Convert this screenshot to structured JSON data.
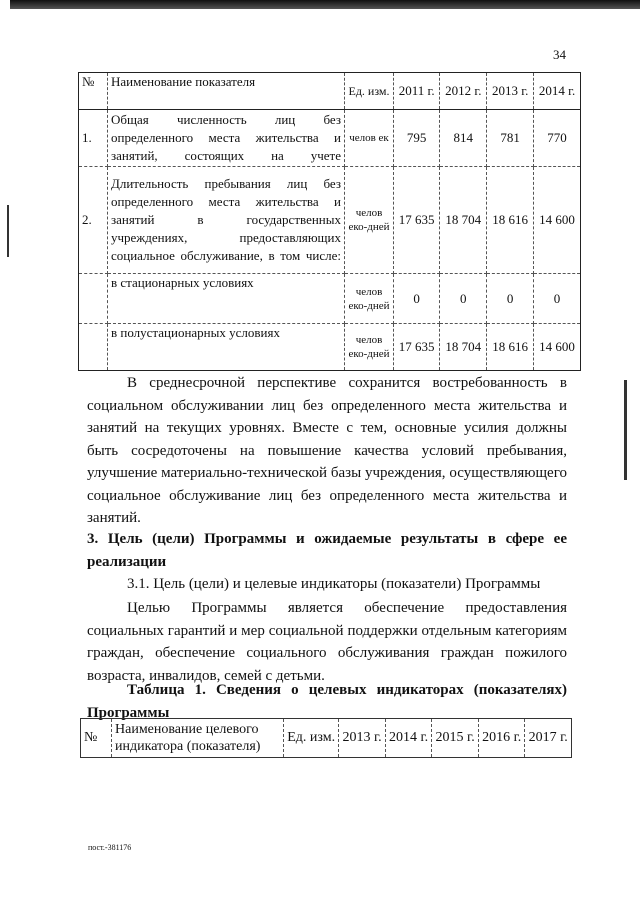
{
  "page_number": "34",
  "table1": {
    "headers": [
      "№",
      "Наименование показателя",
      "Ед. изм.",
      "2011 г.",
      "2012 г.",
      "2013 г.",
      "2014 г."
    ],
    "rows": [
      {
        "num": "1.",
        "name": "Общая численность лиц без определенного места жительства и занятий, состоящих на учете",
        "unit": "челов ек",
        "values": [
          "795",
          "814",
          "781",
          "770"
        ]
      },
      {
        "num": "2.",
        "name": "Длительность пребывания лиц без определенного места жительства и занятий в государственных учреждениях, предоставляющих социальное обслуживание, в том числе:",
        "unit": "челов еко-дней",
        "values": [
          "17 635",
          "18 704",
          "18 616",
          "14 600"
        ]
      },
      {
        "num": "",
        "name": "в стационарных условиях",
        "unit": "челов еко-дней",
        "values": [
          "0",
          "0",
          "0",
          "0"
        ]
      },
      {
        "num": "",
        "name": "в полустационарных условиях",
        "unit": "челов еко-дней",
        "values": [
          "17 635",
          "18 704",
          "18 616",
          "14 600"
        ]
      }
    ]
  },
  "paragraph1": "В среднесрочной перспективе сохранится востребованность в социальном обслуживании лиц без определенного места жительства и занятий на текущих уровнях. Вместе с тем, основные усилия должны быть сосредоточены на повышение качества условий пребывания, улучшение материально-технической базы учреждения, осуществляющего социальное обслуживание лиц без определенного места жительства и занятий.",
  "section_heading": "3. Цель (цели) Программы и ожидаемые результаты в сфере ее реализации",
  "subsection_heading": "3.1. Цель (цели) и целевые индикаторы (показатели) Программы",
  "paragraph2": "Целью Программы является обеспечение предоставления социальных гарантий и мер социальной поддержки отдельным категориям граждан, обеспечение социального обслуживания граждан пожилого возраста, инвалидов, семей с детьми.",
  "table2_caption": "Таблица 1. Сведения о целевых индикаторах (показателях) Программы",
  "table2": {
    "headers": [
      "№",
      "Наименование целевого индикатора (показателя)",
      "Ед. изм.",
      "2013 г.",
      "2014 г.",
      "2015 г.",
      "2016 г.",
      "2017 г."
    ]
  },
  "footer": "пост.-381176"
}
